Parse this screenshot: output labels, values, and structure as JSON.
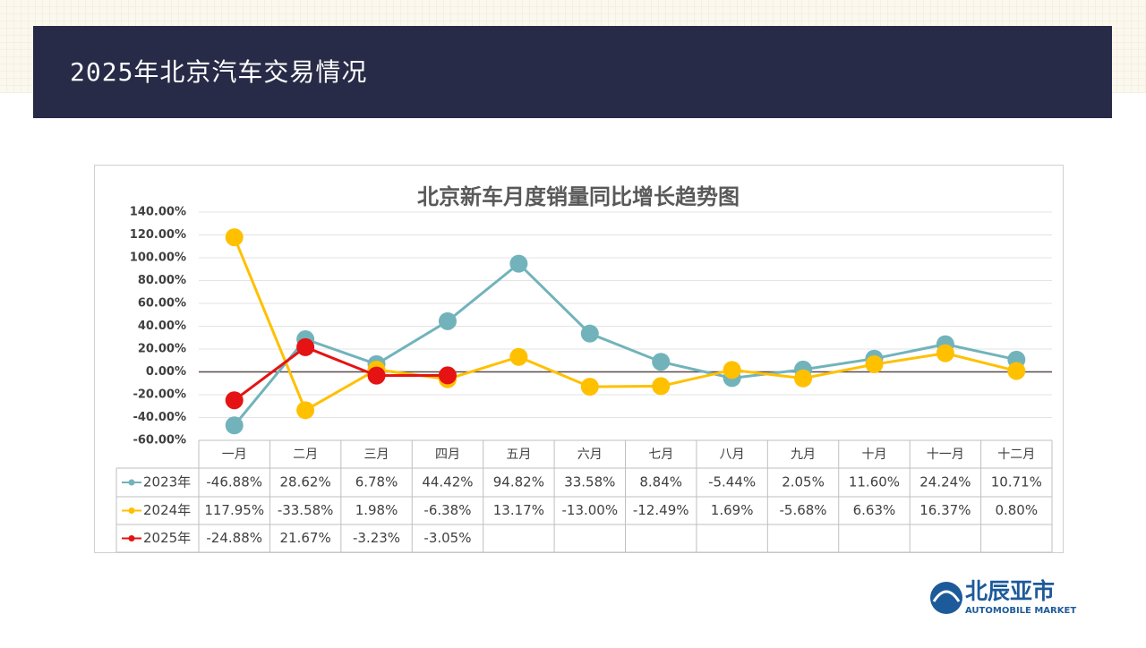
{
  "header": {
    "title": "2025年北京汽车交易情况"
  },
  "logo": {
    "name": "北辰亚市",
    "subtitle": "AUTOMOBILE MARKET"
  },
  "chart_data": {
    "type": "line",
    "title": "北京新车月度销量同比增长趋势图",
    "categories": [
      "一月",
      "二月",
      "三月",
      "四月",
      "五月",
      "六月",
      "七月",
      "八月",
      "九月",
      "十月",
      "十一月",
      "十二月"
    ],
    "series": [
      {
        "name": "2023年",
        "color": "#72b3bb",
        "values": [
          -46.88,
          28.62,
          6.78,
          44.42,
          94.82,
          33.58,
          8.84,
          -5.44,
          2.05,
          11.6,
          24.24,
          10.71
        ],
        "value_labels": [
          "-46.88%",
          "28.62%",
          "6.78%",
          "44.42%",
          "94.82%",
          "33.58%",
          "8.84%",
          "-5.44%",
          "2.05%",
          "11.60%",
          "24.24%",
          "10.71%"
        ]
      },
      {
        "name": "2024年",
        "color": "#ffc000",
        "values": [
          117.95,
          -33.58,
          1.98,
          -6.38,
          13.17,
          -13.0,
          -12.49,
          1.69,
          -5.68,
          6.63,
          16.37,
          0.8
        ],
        "value_labels": [
          "117.95%",
          "-33.58%",
          "1.98%",
          "-6.38%",
          "13.17%",
          "-13.00%",
          "-12.49%",
          "1.69%",
          "-5.68%",
          "6.63%",
          "16.37%",
          "0.80%"
        ]
      },
      {
        "name": "2025年",
        "color": "#e51313",
        "values": [
          -24.88,
          21.67,
          -3.23,
          -3.05,
          null,
          null,
          null,
          null,
          null,
          null,
          null,
          null
        ],
        "value_labels": [
          "-24.88%",
          "21.67%",
          "-3.23%",
          "-3.05%",
          null,
          null,
          null,
          null,
          null,
          null,
          null,
          null
        ]
      }
    ],
    "ylim": [
      -60,
      140
    ],
    "yticks": [
      {
        "value": -60,
        "label": "-60.00%"
      },
      {
        "value": -40,
        "label": "-40.00%"
      },
      {
        "value": -20,
        "label": "-20.00%"
      },
      {
        "value": 0,
        "label": "0.00%"
      },
      {
        "value": 20,
        "label": "20.00%"
      },
      {
        "value": 40,
        "label": "40.00%"
      },
      {
        "value": 60,
        "label": "60.00%"
      },
      {
        "value": 80,
        "label": "80.00%"
      },
      {
        "value": 100,
        "label": "100.00%"
      },
      {
        "value": 120,
        "label": "120.00%"
      },
      {
        "value": 140,
        "label": "140.00%"
      }
    ],
    "grid": true
  }
}
